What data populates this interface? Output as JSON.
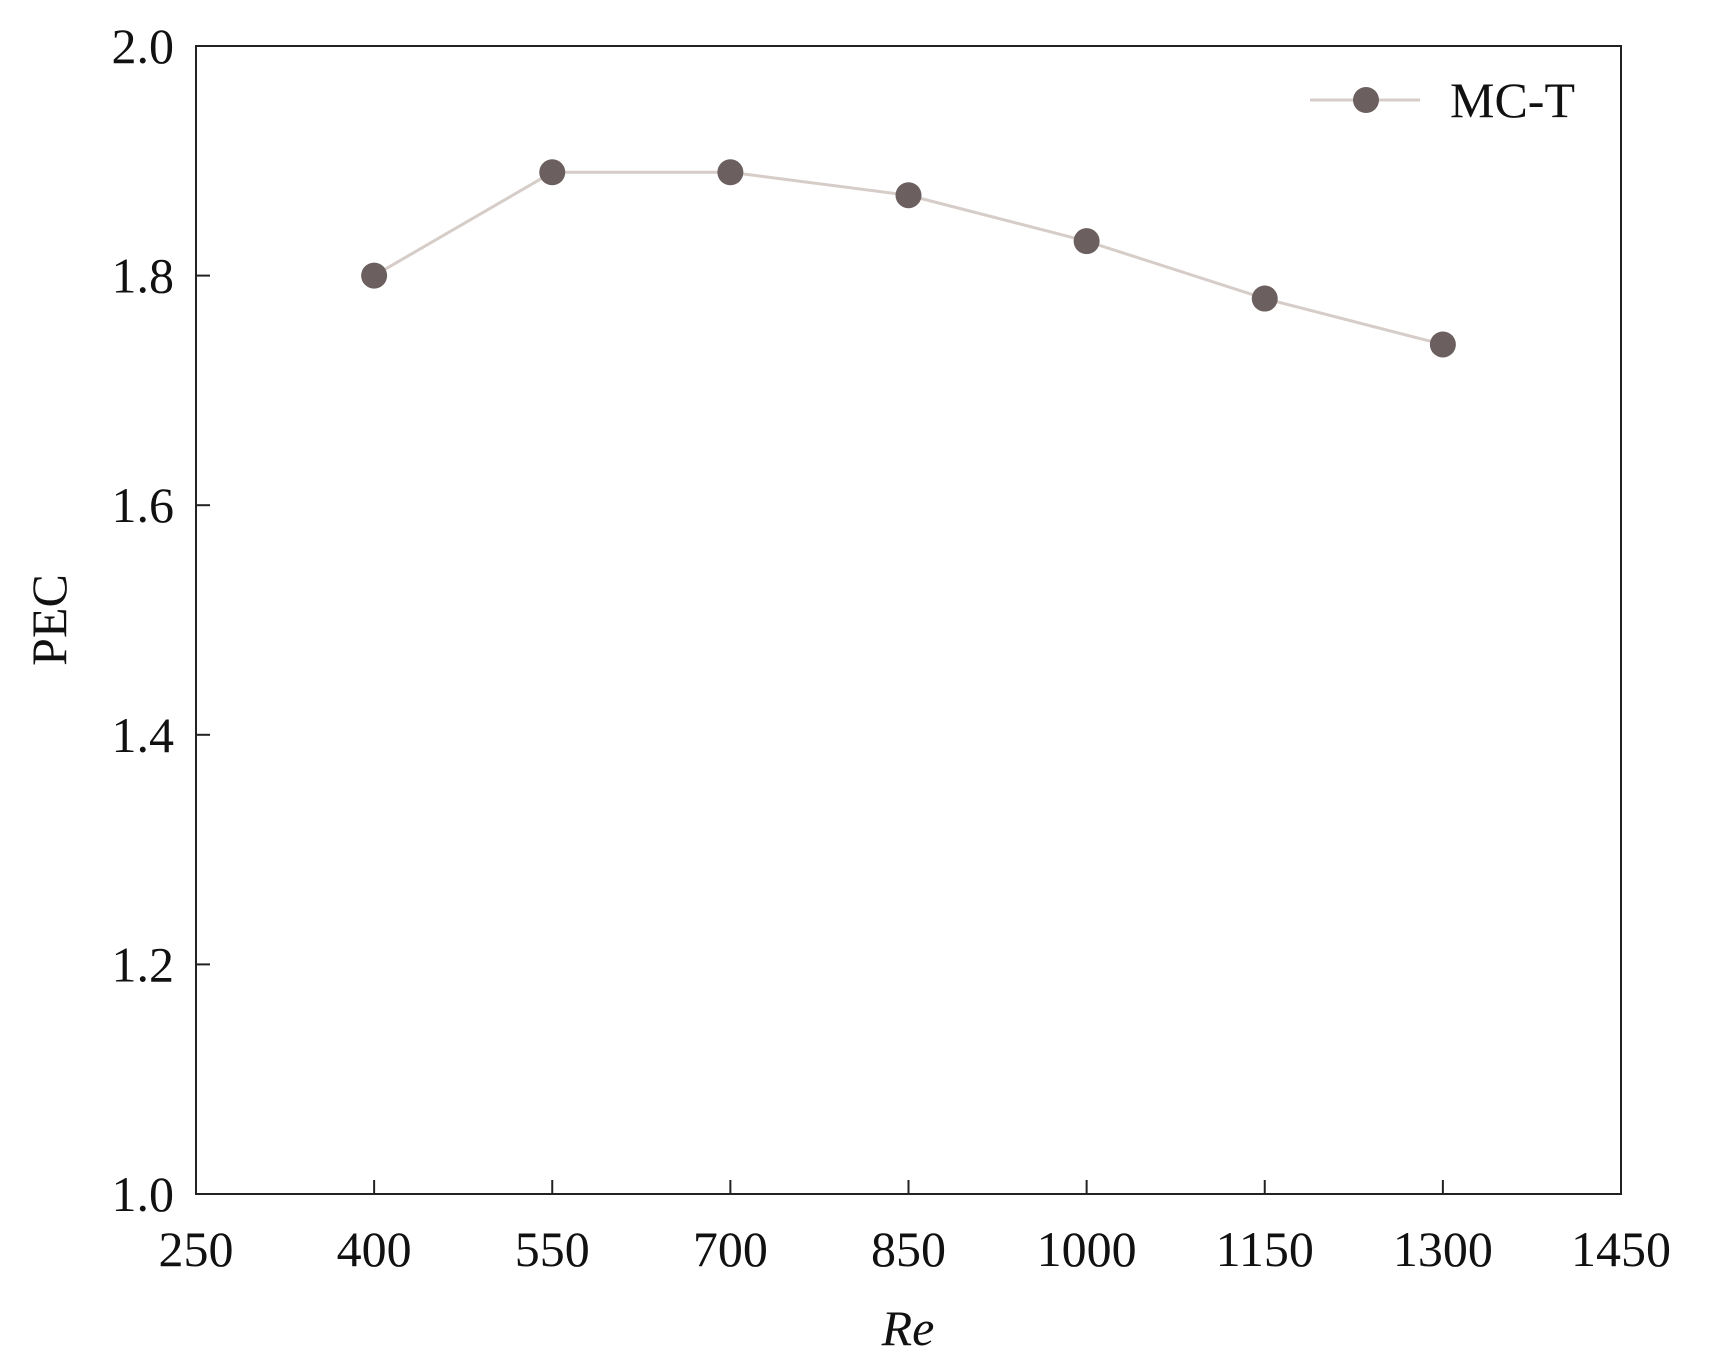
{
  "chart_data": {
    "type": "line",
    "title": "",
    "xlabel": "Re",
    "ylabel": "PEC",
    "xlim": [
      250,
      1450
    ],
    "ylim": [
      1.0,
      2.0
    ],
    "xticks": [
      "250",
      "400",
      "550",
      "700",
      "850",
      "1000",
      "1150",
      "1300",
      "1450"
    ],
    "yticks": [
      "1.0",
      "1.2",
      "1.4",
      "1.6",
      "1.8",
      "2.0"
    ],
    "grid": false,
    "legend_position": "top-right",
    "series": [
      {
        "name": "MC-T",
        "marker": "circle",
        "line_color": "#d6ccc8",
        "marker_color": "#6b5f5f",
        "x": [
          400,
          550,
          700,
          850,
          1000,
          1150,
          1300
        ],
        "y": [
          1.8,
          1.89,
          1.89,
          1.87,
          1.83,
          1.78,
          1.74
        ]
      }
    ]
  }
}
